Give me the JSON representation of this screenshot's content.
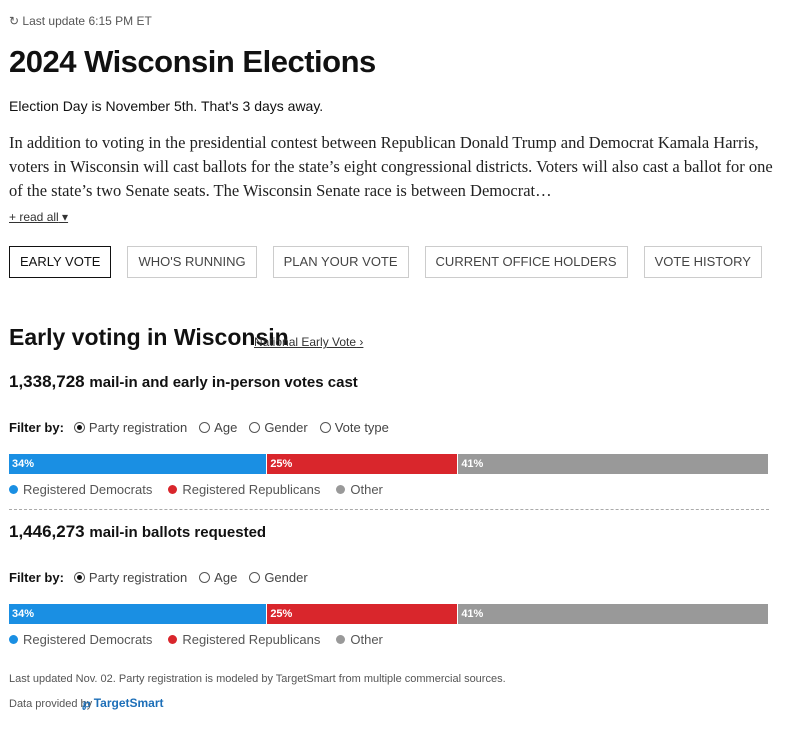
{
  "header": {
    "last_update": "Last update 6:15 PM ET",
    "title": "2024 Wisconsin Elections",
    "subtitle": "Election Day is November 5th. That's 3 days away.",
    "intro": "In addition to voting in the presidential contest between Republican Donald Trump and Democrat Kamala Harris, voters in Wisconsin will cast ballots for the state’s eight congressional districts. Voters will also cast a ballot for one of the state’s two Senate seats. The Wisconsin Senate race is between Democrat…",
    "read_all": "+ read all"
  },
  "tabs": {
    "items": [
      "EARLY VOTE",
      "WHO'S RUNNING",
      "PLAN YOUR VOTE",
      "CURRENT OFFICE HOLDERS",
      "VOTE HISTORY"
    ],
    "selected": 0
  },
  "section": {
    "title": "Early voting in Wisconsin",
    "link": "National Early Vote"
  },
  "blocks": [
    {
      "count": "1,338,728",
      "count_text": "mail-in and early in-person votes cast",
      "filter_label": "Filter by:",
      "filters": [
        "Party registration",
        "Age",
        "Gender",
        "Vote type"
      ],
      "selected": 0,
      "segments": [
        {
          "name": "Registered Democrats",
          "color": "#1a8fe3",
          "value": 34,
          "value_label": "34%"
        },
        {
          "name": "Registered Republicans",
          "color": "#d9262c",
          "value": 25,
          "value_label": "25%"
        },
        {
          "name": "Other",
          "color": "#999999",
          "value": 41,
          "value_label": "41%"
        }
      ]
    },
    {
      "count": "1,446,273",
      "count_text": "mail-in ballots requested",
      "filter_label": "Filter by:",
      "filters": [
        "Party registration",
        "Age",
        "Gender"
      ],
      "selected": 0,
      "segments": [
        {
          "name": "Registered Democrats",
          "color": "#1a8fe3",
          "value": 34,
          "value_label": "34%"
        },
        {
          "name": "Registered Republicans",
          "color": "#d9262c",
          "value": 25,
          "value_label": "25%"
        },
        {
          "name": "Other",
          "color": "#999999",
          "value": 41,
          "value_label": "41%"
        }
      ]
    }
  ],
  "footer": {
    "note": "Last updated Nov. 02. Party registration is modeled by TargetSmart from multiple commercial sources.",
    "provided_by": "Data provided by",
    "logo": "TargetSmart"
  }
}
